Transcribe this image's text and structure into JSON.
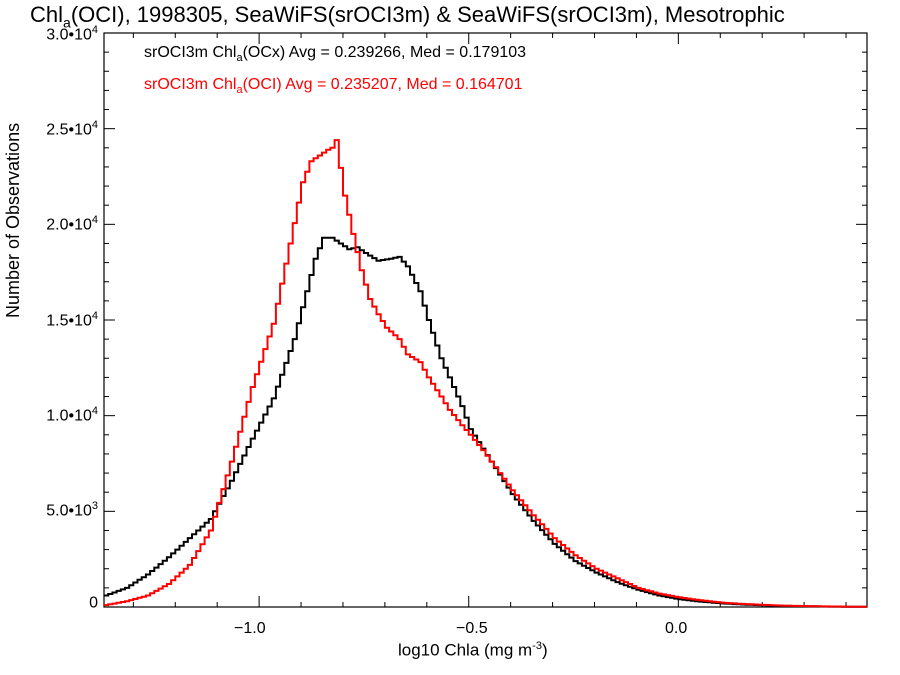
{
  "title": {
    "pre": "Chl",
    "sub": "a",
    "post": "(OCI), 1998305, SeaWiFS(srOCI3m) & SeaWiFS(srOCI3m), Mesotrophic"
  },
  "legend": [
    {
      "pre": "srOCI3m Chl",
      "sub": "a",
      "post": "(OCx) Avg = 0.239266, Med = 0.179103",
      "color": "#000000"
    },
    {
      "pre": "srOCI3m Chl",
      "sub": "a",
      "post": "(OCI) Avg = 0.235207, Med = 0.164701",
      "color": "#ff0000"
    }
  ],
  "axes": {
    "ylabel": "Number of Observations",
    "xlabel_pre": "log10 Chla (mg m",
    "xlabel_sup": "-3",
    "xlabel_post": ")",
    "yticks": [
      {
        "mant": "0",
        "exp": ""
      },
      {
        "mant": "5.0•10",
        "exp": "3"
      },
      {
        "mant": "1.0•10",
        "exp": "4"
      },
      {
        "mant": "1.5•10",
        "exp": "4"
      },
      {
        "mant": "2.0•10",
        "exp": "4"
      },
      {
        "mant": "2.5•10",
        "exp": "4"
      },
      {
        "mant": "3.0•10",
        "exp": "4"
      }
    ],
    "xticks": [
      "−1.0",
      "−0.5",
      "0.0"
    ]
  },
  "chart_data": {
    "type": "line",
    "xlim": [
      -1.37,
      0.45
    ],
    "ylim": [
      0,
      30000
    ],
    "series": [
      {
        "color": "#000000",
        "x": [
          -1.37,
          -1.32,
          -1.27,
          -1.22,
          -1.17,
          -1.12,
          -1.07,
          -1.02,
          -0.97,
          -0.92,
          -0.89,
          -0.87,
          -0.85,
          -0.83,
          -0.81,
          -0.79,
          -0.77,
          -0.75,
          -0.72,
          -0.69,
          -0.67,
          -0.65,
          -0.62,
          -0.6,
          -0.57,
          -0.55,
          -0.52,
          -0.5,
          -0.45,
          -0.4,
          -0.35,
          -0.3,
          -0.25,
          -0.2,
          -0.15,
          -0.1,
          -0.05,
          0.0,
          0.05,
          0.1,
          0.15,
          0.2,
          0.25,
          0.3,
          0.35,
          0.4,
          0.45
        ],
        "y": [
          600,
          1000,
          1700,
          2600,
          3600,
          4600,
          6600,
          8800,
          10900,
          14000,
          16500,
          18200,
          19300,
          19300,
          19000,
          18700,
          18800,
          18500,
          18100,
          18200,
          18300,
          17800,
          16500,
          15000,
          13000,
          12000,
          10500,
          9300,
          7600,
          5900,
          4500,
          3300,
          2400,
          1800,
          1300,
          900,
          600,
          400,
          280,
          190,
          130,
          90,
          60,
          40,
          25,
          15,
          10
        ]
      },
      {
        "color": "#ff0000",
        "x": [
          -1.37,
          -1.32,
          -1.27,
          -1.22,
          -1.17,
          -1.12,
          -1.07,
          -1.02,
          -0.97,
          -0.93,
          -0.9,
          -0.88,
          -0.86,
          -0.84,
          -0.83,
          -0.82,
          -0.8,
          -0.78,
          -0.76,
          -0.74,
          -0.72,
          -0.7,
          -0.67,
          -0.65,
          -0.62,
          -0.6,
          -0.57,
          -0.55,
          -0.52,
          -0.5,
          -0.47,
          -0.45,
          -0.4,
          -0.35,
          -0.3,
          -0.25,
          -0.2,
          -0.15,
          -0.1,
          -0.05,
          0.0,
          0.05,
          0.1,
          0.15,
          0.2,
          0.25,
          0.3,
          0.35,
          0.4,
          0.45
        ],
        "y": [
          100,
          300,
          600,
          1200,
          2200,
          4000,
          7600,
          11500,
          14800,
          19000,
          22200,
          23300,
          23600,
          23900,
          24000,
          24400,
          21500,
          19500,
          17600,
          16100,
          15300,
          14600,
          14000,
          13200,
          12800,
          12000,
          11000,
          10300,
          9500,
          9000,
          8200,
          7600,
          6100,
          4800,
          3600,
          2700,
          2000,
          1500,
          1000,
          700,
          500,
          350,
          230,
          160,
          110,
          70,
          45,
          30,
          20,
          10
        ]
      }
    ]
  }
}
